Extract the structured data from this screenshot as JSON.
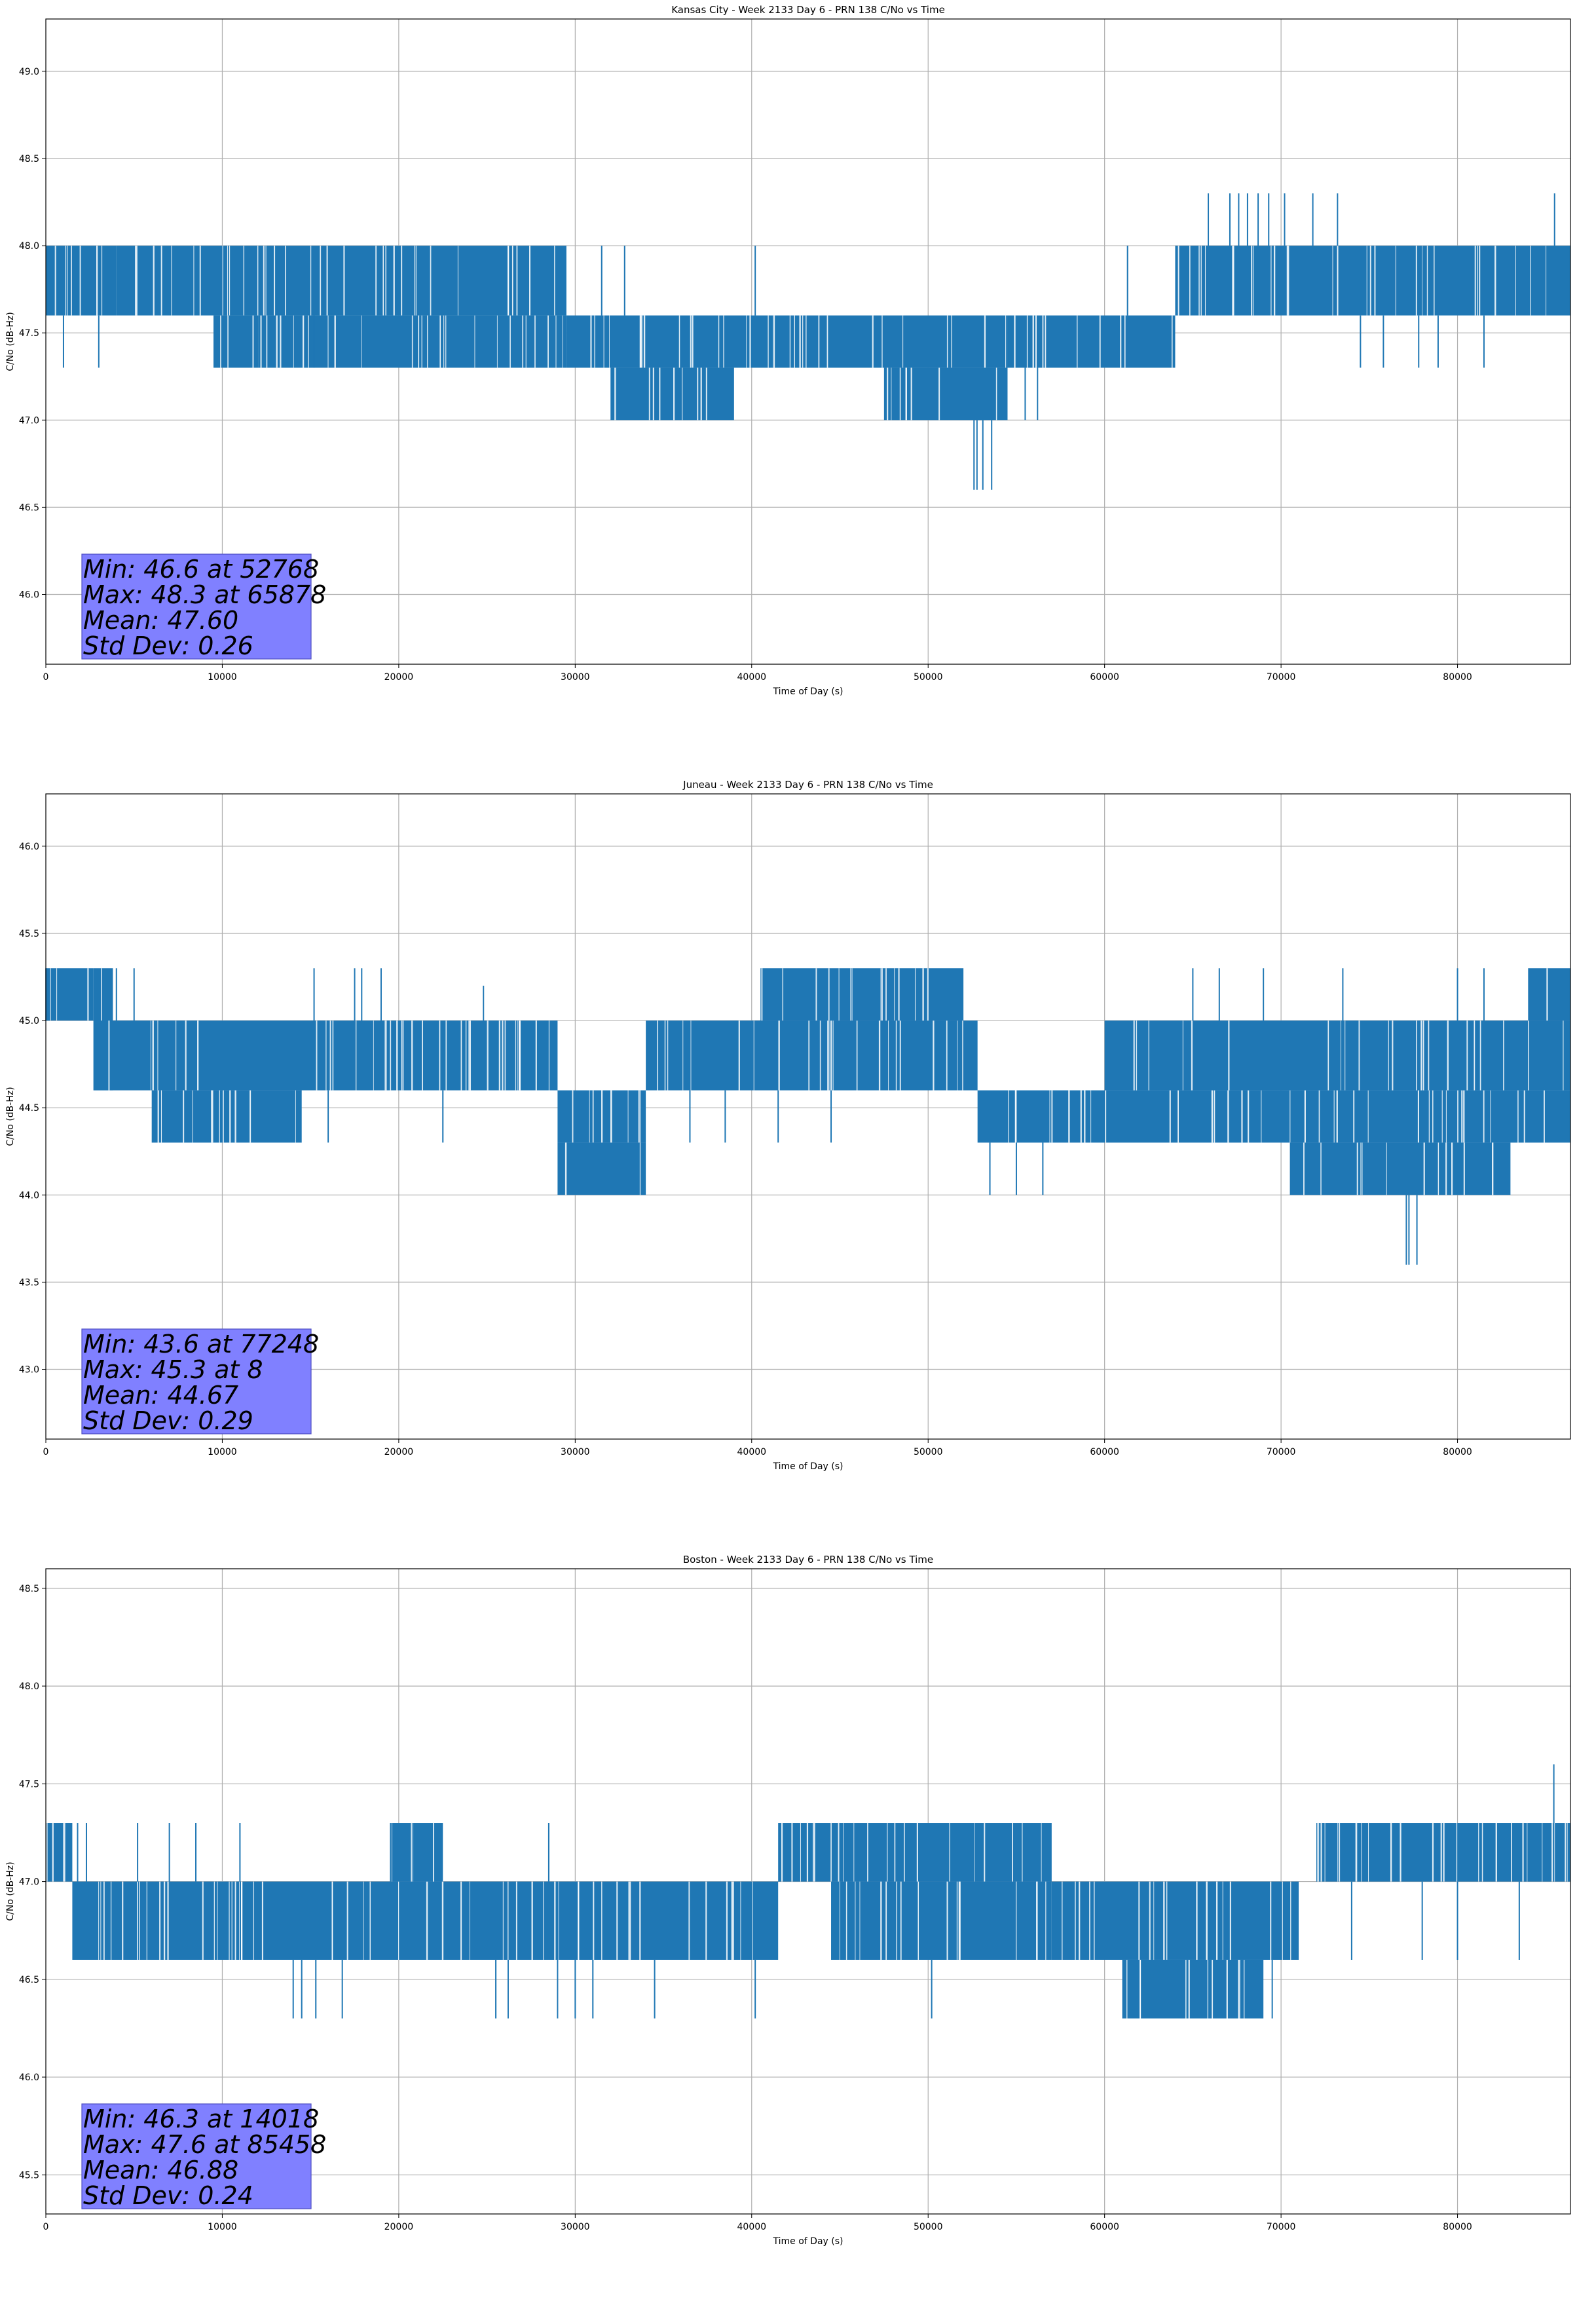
{
  "chart_data": [
    {
      "type": "line",
      "title": "Kansas City - Week 2133 Day 6 - PRN 138 C/No vs Time",
      "xlabel": "Time of Day (s)",
      "ylabel": "C/No (dB-Hz)",
      "xlim": [
        0,
        86400
      ],
      "ylim": [
        45.6,
        49.3
      ],
      "xticks": [
        0,
        10000,
        20000,
        30000,
        40000,
        50000,
        60000,
        70000,
        80000
      ],
      "yticks": [
        46.0,
        46.5,
        47.0,
        47.5,
        48.0,
        48.5,
        49.0
      ],
      "grid": true,
      "color": "#1f77b4",
      "series": [
        {
          "segments": [
            {
              "x": [
                0,
                4000
              ],
              "y": [
                47.6,
                48.0
              ]
            },
            {
              "x": [
                4000,
                29500
              ],
              "y": [
                47.6,
                48.0
              ]
            },
            {
              "x": [
                9500,
                29500
              ],
              "y": [
                47.3,
                47.6
              ]
            },
            {
              "x": [
                29500,
                54500
              ],
              "y": [
                47.3,
                47.6
              ]
            },
            {
              "x": [
                32000,
                39000
              ],
              "y": [
                47.0,
                47.3
              ]
            },
            {
              "x": [
                47500,
                54500
              ],
              "y": [
                47.0,
                47.3
              ]
            },
            {
              "x": [
                54500,
                64000
              ],
              "y": [
                47.3,
                47.6
              ]
            },
            {
              "x": [
                64000,
                86400
              ],
              "y": [
                47.6,
                48.0
              ]
            }
          ],
          "spikes": [
            {
              "x": 1000,
              "y0": 47.6,
              "y1": 47.3
            },
            {
              "x": 3000,
              "y0": 47.6,
              "y1": 47.3
            },
            {
              "x": 12000,
              "y0": 47.6,
              "y1": 47.3
            },
            {
              "x": 15200,
              "y0": 47.6,
              "y1": 47.3
            },
            {
              "x": 32800,
              "y0": 47.6,
              "y1": 48.0
            },
            {
              "x": 31500,
              "y0": 47.6,
              "y1": 48.0
            },
            {
              "x": 40200,
              "y0": 47.6,
              "y1": 48.0
            },
            {
              "x": 41000,
              "y0": 47.3,
              "y1": 47.6
            },
            {
              "x": 52600,
              "y0": 47.0,
              "y1": 46.6
            },
            {
              "x": 52768,
              "y0": 47.0,
              "y1": 46.6
            },
            {
              "x": 53100,
              "y0": 47.0,
              "y1": 46.6
            },
            {
              "x": 53600,
              "y0": 47.0,
              "y1": 46.6
            },
            {
              "x": 55500,
              "y0": 47.3,
              "y1": 47.0
            },
            {
              "x": 56200,
              "y0": 47.3,
              "y1": 47.0
            },
            {
              "x": 61300,
              "y0": 47.6,
              "y1": 48.0
            },
            {
              "x": 65878,
              "y0": 48.0,
              "y1": 48.3
            },
            {
              "x": 67100,
              "y0": 48.0,
              "y1": 48.3
            },
            {
              "x": 67600,
              "y0": 48.0,
              "y1": 48.3
            },
            {
              "x": 68100,
              "y0": 48.0,
              "y1": 48.3
            },
            {
              "x": 68700,
              "y0": 48.0,
              "y1": 48.3
            },
            {
              "x": 69300,
              "y0": 48.0,
              "y1": 48.3
            },
            {
              "x": 70200,
              "y0": 48.0,
              "y1": 48.3
            },
            {
              "x": 71800,
              "y0": 48.0,
              "y1": 48.3
            },
            {
              "x": 73200,
              "y0": 48.0,
              "y1": 48.3
            },
            {
              "x": 74500,
              "y0": 47.6,
              "y1": 47.3
            },
            {
              "x": 75800,
              "y0": 47.6,
              "y1": 47.3
            },
            {
              "x": 77800,
              "y0": 47.6,
              "y1": 47.3
            },
            {
              "x": 78900,
              "y0": 47.6,
              "y1": 47.3
            },
            {
              "x": 81500,
              "y0": 47.6,
              "y1": 47.3
            },
            {
              "x": 85500,
              "y0": 48.0,
              "y1": 48.3
            }
          ]
        }
      ],
      "stats": [
        "Min: 46.6 at 52768",
        "Max: 48.3 at 65878",
        "Mean: 47.60",
        "Std Dev: 0.26"
      ]
    },
    {
      "type": "line",
      "title": "Juneau - Week 2133 Day 6 - PRN 138 C/No vs Time",
      "xlabel": "Time of Day (s)",
      "ylabel": "C/No (dB-Hz)",
      "xlim": [
        0,
        86400
      ],
      "ylim": [
        42.6,
        46.3
      ],
      "xticks": [
        0,
        10000,
        20000,
        30000,
        40000,
        50000,
        60000,
        70000,
        80000
      ],
      "yticks": [
        43.0,
        43.5,
        44.0,
        44.5,
        45.0,
        45.5,
        46.0
      ],
      "grid": true,
      "color": "#1f77b4",
      "series": [
        {
          "segments": [
            {
              "x": [
                0,
                2700
              ],
              "y": [
                45.0,
                45.3
              ]
            },
            {
              "x": [
                2700,
                3800
              ],
              "y": [
                44.6,
                45.3
              ]
            },
            {
              "x": [
                2700,
                29000
              ],
              "y": [
                44.6,
                45.0
              ]
            },
            {
              "x": [
                6000,
                14500
              ],
              "y": [
                44.3,
                44.6
              ]
            },
            {
              "x": [
                29000,
                34000
              ],
              "y": [
                44.3,
                44.6
              ]
            },
            {
              "x": [
                29000,
                34000
              ],
              "y": [
                44.0,
                44.3
              ]
            },
            {
              "x": [
                34000,
                52800
              ],
              "y": [
                44.6,
                45.0
              ]
            },
            {
              "x": [
                40500,
                52000
              ],
              "y": [
                45.0,
                45.3
              ]
            },
            {
              "x": [
                52800,
                86400
              ],
              "y": [
                44.3,
                44.6
              ]
            },
            {
              "x": [
                60000,
                86400
              ],
              "y": [
                44.6,
                45.0
              ]
            },
            {
              "x": [
                70500,
                83000
              ],
              "y": [
                44.0,
                44.3
              ]
            },
            {
              "x": [
                84000,
                86400
              ],
              "y": [
                45.0,
                45.3
              ]
            }
          ],
          "spikes": [
            {
              "x": 8,
              "y0": 45.0,
              "y1": 45.3
            },
            {
              "x": 4000,
              "y0": 45.0,
              "y1": 45.3
            },
            {
              "x": 5000,
              "y0": 45.0,
              "y1": 45.3
            },
            {
              "x": 15200,
              "y0": 45.0,
              "y1": 45.3
            },
            {
              "x": 17500,
              "y0": 45.0,
              "y1": 45.3
            },
            {
              "x": 17900,
              "y0": 45.0,
              "y1": 45.3
            },
            {
              "x": 19000,
              "y0": 45.0,
              "y1": 45.3
            },
            {
              "x": 24800,
              "y0": 45.0,
              "y1": 45.2
            },
            {
              "x": 16000,
              "y0": 44.6,
              "y1": 44.3
            },
            {
              "x": 22500,
              "y0": 44.6,
              "y1": 44.3
            },
            {
              "x": 36500,
              "y0": 44.6,
              "y1": 44.3
            },
            {
              "x": 38500,
              "y0": 44.6,
              "y1": 44.3
            },
            {
              "x": 41500,
              "y0": 44.6,
              "y1": 44.3
            },
            {
              "x": 44500,
              "y0": 44.6,
              "y1": 44.3
            },
            {
              "x": 53500,
              "y0": 44.3,
              "y1": 44.0
            },
            {
              "x": 55000,
              "y0": 44.3,
              "y1": 44.0
            },
            {
              "x": 56500,
              "y0": 44.3,
              "y1": 44.0
            },
            {
              "x": 65000,
              "y0": 45.0,
              "y1": 45.3
            },
            {
              "x": 66500,
              "y0": 45.0,
              "y1": 45.3
            },
            {
              "x": 69000,
              "y0": 45.0,
              "y1": 45.3
            },
            {
              "x": 73500,
              "y0": 45.0,
              "y1": 45.3
            },
            {
              "x": 77100,
              "y0": 44.0,
              "y1": 43.6
            },
            {
              "x": 77248,
              "y0": 44.0,
              "y1": 43.6
            },
            {
              "x": 77700,
              "y0": 44.0,
              "y1": 43.6
            },
            {
              "x": 80000,
              "y0": 45.0,
              "y1": 45.3
            },
            {
              "x": 81500,
              "y0": 45.0,
              "y1": 45.3
            }
          ]
        }
      ],
      "stats": [
        "Min: 43.6 at 77248",
        "Max: 45.3 at 8",
        "Mean: 44.67",
        "Std Dev: 0.29"
      ]
    },
    {
      "type": "line",
      "title": "Boston - Week 2133 Day 6 - PRN 138 C/No vs Time",
      "xlabel": "Time of Day (s)",
      "ylabel": "C/No (dB-Hz)",
      "xlim": [
        0,
        86400
      ],
      "ylim": [
        45.3,
        48.6
      ],
      "xticks": [
        0,
        10000,
        20000,
        30000,
        40000,
        50000,
        60000,
        70000,
        80000
      ],
      "yticks": [
        45.5,
        46.0,
        46.5,
        47.0,
        47.5,
        48.0,
        48.5
      ],
      "grid": true,
      "color": "#1f77b4",
      "series": [
        {
          "segments": [
            {
              "x": [
                0,
                1500
              ],
              "y": [
                47.0,
                47.3
              ]
            },
            {
              "x": [
                1500,
                41500
              ],
              "y": [
                46.6,
                47.0
              ]
            },
            {
              "x": [
                19500,
                22500
              ],
              "y": [
                47.0,
                47.3
              ]
            },
            {
              "x": [
                41500,
                57000
              ],
              "y": [
                47.0,
                47.3
              ]
            },
            {
              "x": [
                44500,
                57000
              ],
              "y": [
                46.6,
                47.0
              ]
            },
            {
              "x": [
                57000,
                71000
              ],
              "y": [
                46.6,
                47.0
              ]
            },
            {
              "x": [
                61000,
                69000
              ],
              "y": [
                46.3,
                46.6
              ]
            },
            {
              "x": [
                72000,
                86400
              ],
              "y": [
                47.0,
                47.3
              ]
            }
          ],
          "spikes": [
            {
              "x": 1800,
              "y0": 47.0,
              "y1": 47.3
            },
            {
              "x": 2300,
              "y0": 47.0,
              "y1": 47.3
            },
            {
              "x": 5200,
              "y0": 47.0,
              "y1": 47.3
            },
            {
              "x": 7000,
              "y0": 47.0,
              "y1": 47.3
            },
            {
              "x": 8500,
              "y0": 47.0,
              "y1": 47.3
            },
            {
              "x": 11000,
              "y0": 47.0,
              "y1": 47.3
            },
            {
              "x": 14018,
              "y0": 46.6,
              "y1": 46.3
            },
            {
              "x": 14500,
              "y0": 46.6,
              "y1": 46.3
            },
            {
              "x": 15300,
              "y0": 46.6,
              "y1": 46.3
            },
            {
              "x": 16800,
              "y0": 46.6,
              "y1": 46.3
            },
            {
              "x": 25500,
              "y0": 46.6,
              "y1": 46.3
            },
            {
              "x": 26200,
              "y0": 46.6,
              "y1": 46.3
            },
            {
              "x": 28500,
              "y0": 47.0,
              "y1": 47.3
            },
            {
              "x": 29000,
              "y0": 46.6,
              "y1": 46.3
            },
            {
              "x": 30000,
              "y0": 46.6,
              "y1": 46.3
            },
            {
              "x": 31000,
              "y0": 46.6,
              "y1": 46.3
            },
            {
              "x": 34500,
              "y0": 46.6,
              "y1": 46.3
            },
            {
              "x": 40200,
              "y0": 46.6,
              "y1": 46.3
            },
            {
              "x": 50200,
              "y0": 46.6,
              "y1": 46.3
            },
            {
              "x": 69500,
              "y0": 46.6,
              "y1": 46.3
            },
            {
              "x": 74000,
              "y0": 47.0,
              "y1": 46.6
            },
            {
              "x": 78000,
              "y0": 47.0,
              "y1": 46.6
            },
            {
              "x": 80000,
              "y0": 47.0,
              "y1": 46.6
            },
            {
              "x": 83500,
              "y0": 47.0,
              "y1": 46.6
            },
            {
              "x": 85458,
              "y0": 47.3,
              "y1": 47.6
            }
          ]
        }
      ],
      "stats": [
        "Min: 46.3 at 14018",
        "Max: 47.6 at 85458",
        "Mean: 46.88",
        "Std Dev: 0.24"
      ]
    }
  ]
}
